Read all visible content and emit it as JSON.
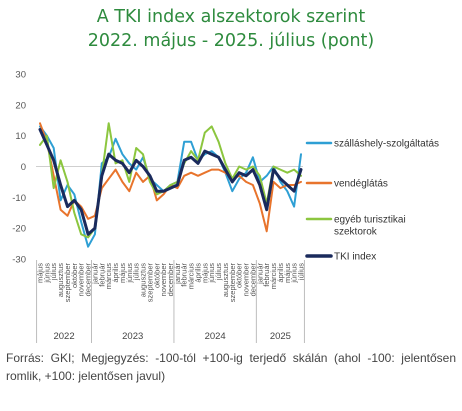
{
  "title_line1": "A TKI index alszektorok szerint",
  "title_line2": "2022. május - 2025. július (pont)",
  "footer": "Forrás: GKI; Megjegyzés: -100-tól +100-ig terjedő skálán (ahol -100: jelentősen romlik, +100: jelentősen javul)",
  "chart_data": {
    "type": "line",
    "ylim": [
      -30,
      30
    ],
    "yticks": [
      30,
      20,
      10,
      0,
      -10,
      -20,
      -30
    ],
    "x": [
      "május",
      "június",
      "július",
      "augusztus",
      "szeptember",
      "október",
      "november",
      "december",
      "január",
      "február",
      "március",
      "április",
      "május",
      "június",
      "július",
      "augusztus",
      "szeptember",
      "október",
      "november",
      "december",
      "január",
      "február",
      "március",
      "április",
      "május",
      "június",
      "július",
      "augusztus",
      "szeptember",
      "október",
      "november",
      "december",
      "január",
      "február",
      "március",
      "április",
      "május",
      "június",
      "július"
    ],
    "years": [
      {
        "label": "2022",
        "start": 0,
        "end": 7
      },
      {
        "label": "2023",
        "start": 8,
        "end": 19
      },
      {
        "label": "2024",
        "start": 20,
        "end": 31
      },
      {
        "label": "2025",
        "start": 32,
        "end": 38
      }
    ],
    "series": [
      {
        "name": "szálláshely-szolgáltatás",
        "color": "#2e9fd4",
        "width": 2,
        "values": [
          13,
          10,
          6,
          -11,
          -6,
          -9,
          -18,
          -26,
          -22,
          1,
          3,
          9,
          4,
          1,
          -1,
          3,
          -4,
          -6,
          -8,
          -6,
          -5,
          8,
          8,
          2,
          4,
          5,
          3,
          -2,
          -8,
          -4,
          -2,
          3,
          -5,
          -3,
          0,
          -5,
          -8,
          -13,
          4
        ]
      },
      {
        "name": "vendéglátás",
        "color": "#e8742c",
        "width": 2,
        "values": [
          14,
          8,
          -3,
          -14,
          -16,
          -11,
          -13,
          -17,
          -16,
          -7,
          -4,
          -1,
          -5,
          -8,
          -2,
          -5,
          -3,
          -11,
          -9,
          -6,
          -7,
          -3,
          -2,
          -3,
          -2,
          -1,
          -1,
          -2,
          -4,
          -3,
          -5,
          -6,
          -12,
          -21,
          -5,
          -7,
          -6,
          -6,
          -5
        ]
      },
      {
        "name": "egyéb turisztikai szektorok",
        "color": "#8cc63f",
        "width": 2,
        "values": [
          7,
          10,
          -7,
          2,
          -5,
          -15,
          -22,
          -23,
          -20,
          -3,
          14,
          1,
          2,
          -5,
          6,
          4,
          -5,
          -9,
          -8,
          -6,
          -5,
          1,
          5,
          2,
          11,
          13,
          8,
          1,
          -4,
          0,
          -1,
          0,
          -3,
          -12,
          0,
          -1,
          -2,
          -1,
          -3
        ]
      },
      {
        "name": "TKI index",
        "color": "#1a2a5c",
        "width": 3,
        "values": [
          12,
          7,
          2,
          -6,
          -13,
          -11,
          -14,
          -22,
          -20,
          -3,
          4,
          2,
          1,
          -2,
          2,
          0,
          -3,
          -8,
          -8,
          -7,
          -6,
          2,
          3,
          1,
          5,
          4,
          3,
          -1,
          -5,
          -2,
          -3,
          -1,
          -6,
          -14,
          -1,
          -4,
          -6,
          -8,
          -1
        ]
      }
    ]
  }
}
